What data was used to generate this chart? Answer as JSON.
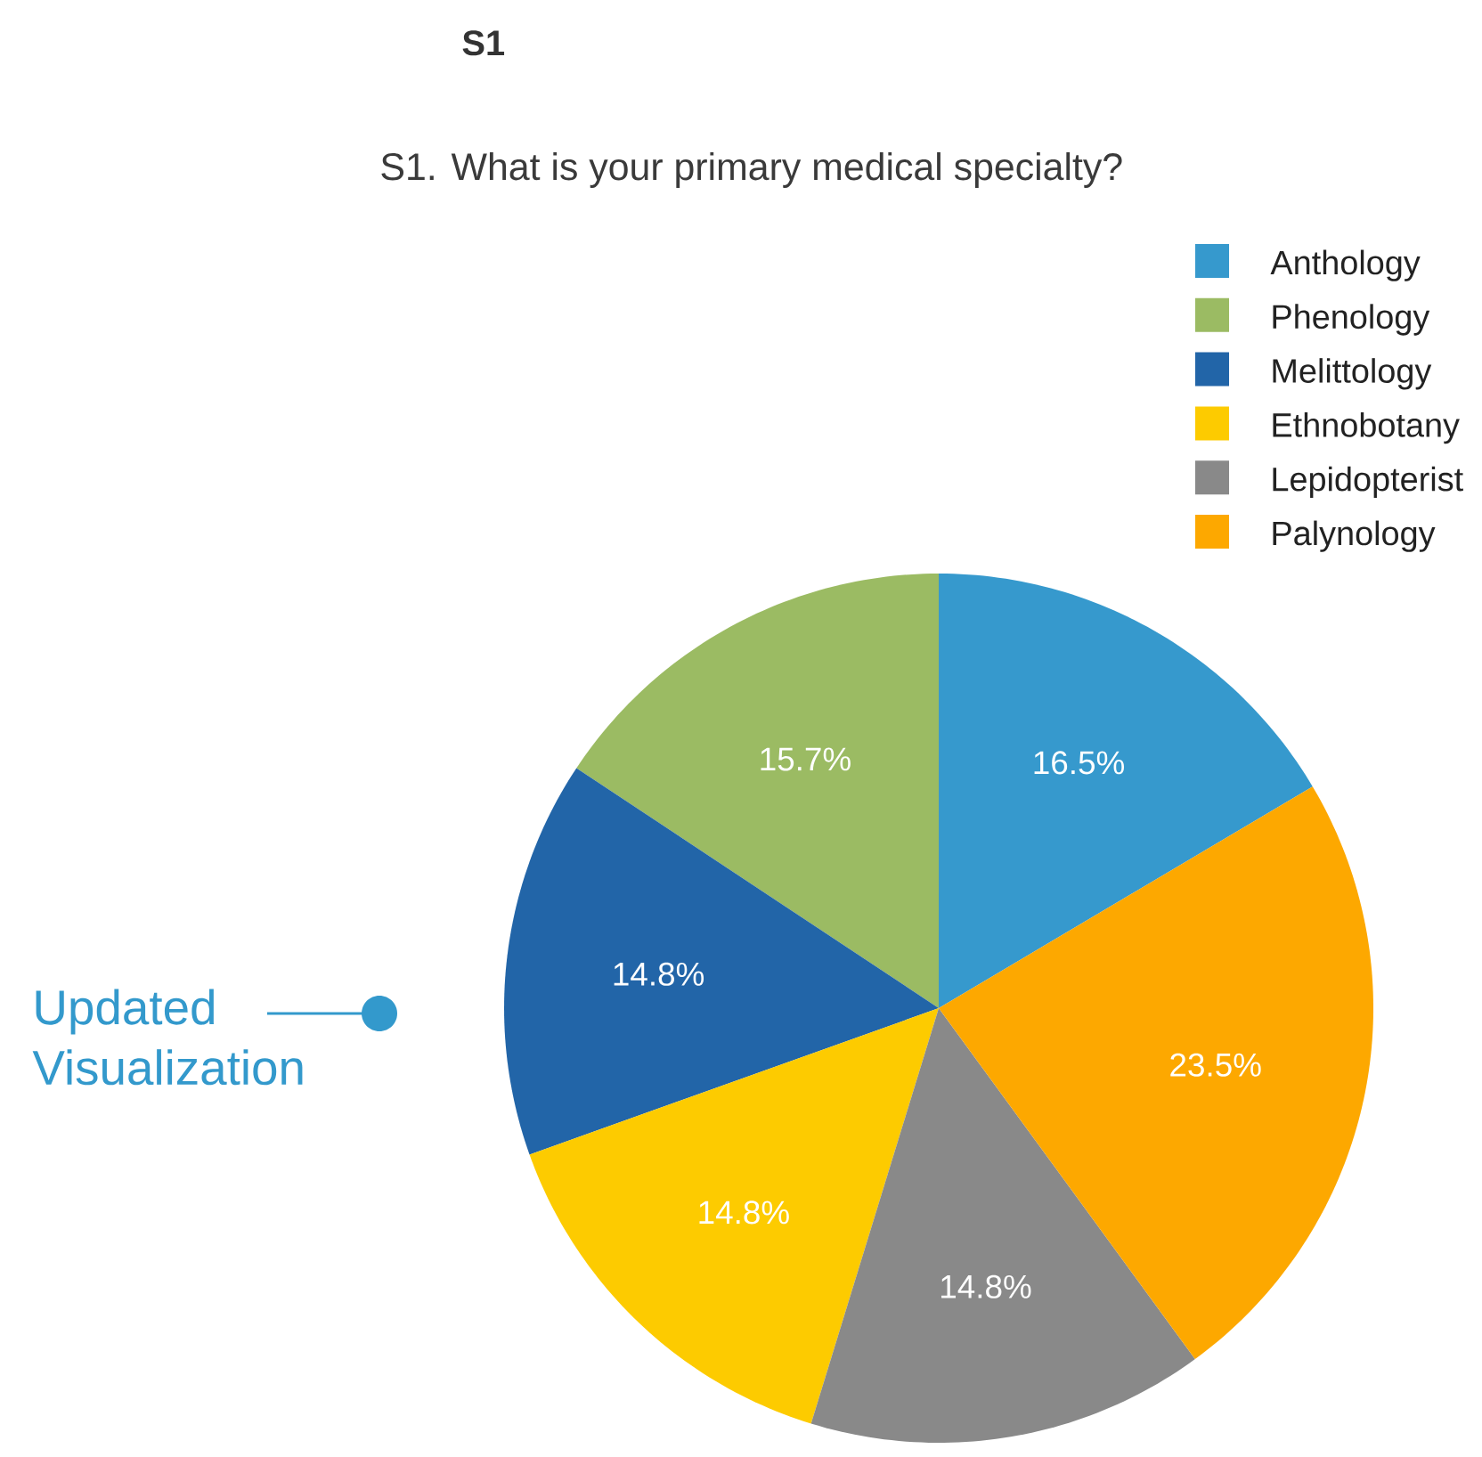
{
  "chart_data": {
    "type": "pie",
    "title": "S1",
    "subtitle": "S1. What is your primary medical specialty?",
    "categories": [
      "Anthology",
      "Phenology",
      "Melittology",
      "Ethnobotany",
      "Lepidopterist",
      "Palynology"
    ],
    "values": [
      16.5,
      15.7,
      14.8,
      14.8,
      14.8,
      23.5
    ],
    "colors": [
      "#3699cd",
      "#9bbb63",
      "#2265a8",
      "#fdcb00",
      "#898989",
      "#fda800"
    ],
    "value_labels": [
      "16.5%",
      "15.7%",
      "14.8%",
      "14.8%",
      "14.8%",
      "23.5%"
    ],
    "legend": "top right",
    "annotations": [
      "Updated Visualization"
    ]
  }
}
